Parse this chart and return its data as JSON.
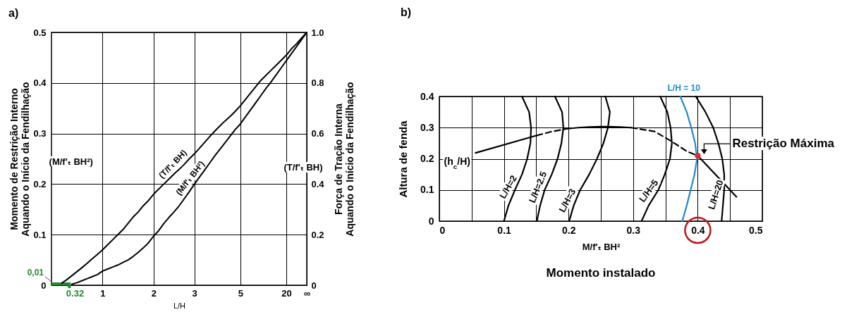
{
  "chart_data": [
    {
      "type": "line",
      "title": "a)",
      "xlabel": "L/H",
      "ylabel": "Momento de Restrição Interno\nAquando o Início da Fendilhação",
      "y2label": "Força de Tração Interna\nAquando o Início da Fendilhação",
      "categories": [
        null,
        null,
        null,
        null,
        null,
        null,
        null,
        null,
        null,
        null,
        "1",
        null,
        null,
        null,
        null,
        null,
        null,
        null,
        null,
        null,
        "2",
        null,
        null,
        null,
        null,
        null,
        null,
        null,
        "3",
        null,
        null,
        null,
        null,
        null,
        null,
        null,
        null,
        "5",
        null,
        null,
        null,
        null,
        null,
        null,
        null,
        null,
        "20",
        null,
        null,
        null,
        "∞"
      ],
      "ylim": [
        0,
        0.5
      ],
      "yticks": [
        0,
        0.1,
        0.2,
        0.3,
        0.4,
        0.5
      ],
      "y2lim": [
        0,
        1
      ],
      "y2ticks": [
        0,
        0.2,
        0.4,
        0.6,
        0.8,
        {
          "value": 1,
          "label": "1.0"
        }
      ],
      "grid": true,
      "series": [
        {
          "name": "(T/f'ₜ BH)",
          "color": "#000000",
          "axis": "y2",
          "values": [
            null,
            null,
            0.008,
            0.022,
            0.038,
            0.054,
            0.07,
            0.087,
            0.105,
            0.122,
            0.14,
            0.16,
            0.18,
            0.2,
            0.22,
            0.245,
            0.27,
            0.29,
            0.315,
            0.335,
            0.36,
            0.38,
            0.4,
            0.42,
            0.44,
            0.458,
            0.478,
            0.5,
            0.52,
            0.542,
            0.565,
            0.588,
            0.61,
            0.63,
            0.65,
            0.668,
            0.688,
            0.71,
            0.735,
            0.76,
            0.785,
            0.81,
            0.83,
            0.85,
            0.87,
            0.89,
            0.91,
            0.935,
            0.955,
            0.978,
            1
          ]
        },
        {
          "name": "(M/f'ₜ BH²)",
          "color": "#000000",
          "values": [
            null,
            null,
            null,
            null,
            0.002,
            0.005,
            0.009,
            0.013,
            0.017,
            0.021,
            0.028,
            0.032,
            0.036,
            0.04,
            0.045,
            0.05,
            0.057,
            0.065,
            0.074,
            0.084,
            0.097,
            0.108,
            0.122,
            0.134,
            0.145,
            0.157,
            0.171,
            0.185,
            0.2,
            0.214,
            0.228,
            0.242,
            0.256,
            0.269,
            0.282,
            0.295,
            0.308,
            0.319,
            0.333,
            0.347,
            0.361,
            0.375,
            0.389,
            0.402,
            0.416,
            0.43,
            0.444,
            0.458,
            0.472,
            0.486,
            0.5
          ]
        }
      ],
      "annotations": [
        "(M/f'ₜ BH²)",
        "(T/f'ₜ BH)",
        "0,01",
        "0.32"
      ]
    },
    {
      "type": "line",
      "title": "b)",
      "xlabel": "M/f'ₜ BH²",
      "ylabel": "Altura de fenda",
      "xlim": [
        0,
        0.5
      ],
      "xticks": [
        0,
        {
          "value": 0.05,
          "label": null
        },
        0.1,
        {
          "value": 0.15,
          "label": null
        },
        0.2,
        {
          "value": 0.25,
          "label": null
        },
        0.3,
        {
          "value": 0.35,
          "label": null
        },
        0.4,
        {
          "value": 0.45,
          "label": null
        },
        0.5
      ],
      "ylim": [
        0,
        0.4
      ],
      "yticks": [
        0,
        0.1,
        0.2,
        0.3,
        0.4
      ],
      "grid": true,
      "series": [
        {
          "name": "L/H=2",
          "color": "#000000",
          "x": [
            0.1,
            0.107,
            0.117,
            0.128,
            0.136,
            0.141,
            0.142,
            0.139,
            0.128
          ],
          "values": [
            0,
            0.05,
            0.1,
            0.15,
            0.2,
            0.25,
            0.3,
            0.35,
            0.4
          ]
        },
        {
          "name": "L/H=2.5",
          "color": "#000000",
          "x": [
            0.151,
            0.156,
            0.163,
            0.174,
            0.183,
            0.189,
            0.192,
            0.19,
            0.179
          ],
          "values": [
            0,
            0.05,
            0.1,
            0.15,
            0.2,
            0.25,
            0.3,
            0.35,
            0.4
          ]
        },
        {
          "name": "L/H=3",
          "color": "#000000",
          "x": [
            0.201,
            0.208,
            0.218,
            0.232,
            0.244,
            0.254,
            0.261,
            0.264,
            0.257
          ],
          "values": [
            0,
            0.05,
            0.1,
            0.15,
            0.2,
            0.25,
            0.3,
            0.35,
            0.4
          ]
        },
        {
          "name": "L/H=5",
          "color": "#000000",
          "x": [
            0.313,
            0.324,
            0.339,
            0.349,
            0.357,
            0.36,
            0.358,
            0.353,
            0.342
          ],
          "values": [
            0,
            0.05,
            0.1,
            0.15,
            0.2,
            0.25,
            0.3,
            0.35,
            0.4
          ]
        },
        {
          "name": "L/H = 10",
          "color": "#1f8ad0",
          "x": [
            0.376,
            0.383,
            0.389,
            0.395,
            0.399,
            0.396,
            0.39,
            0.383,
            0.373
          ],
          "values": [
            0,
            0.05,
            0.1,
            0.15,
            0.2,
            0.25,
            0.3,
            0.35,
            0.4
          ]
        },
        {
          "name": "L/H=20",
          "color": "#000000",
          "x": [
            0.437,
            0.439,
            0.441,
            0.441,
            0.438,
            0.432,
            0.424,
            0.412,
            0.397
          ],
          "values": [
            0,
            0.05,
            0.1,
            0.15,
            0.2,
            0.25,
            0.3,
            0.35,
            0.4
          ]
        },
        {
          "name": "(h$_{c}$/H)",
          "color": "#000000",
          "x": [
            0.056,
            0.151
          ],
          "values": [
            0.219,
            0.275
          ]
        },
        {
          "color": "#000000",
          "line_style": "dashed",
          "x": [
            0.151,
            0.173,
            0.196
          ],
          "values": [
            0.275,
            0.287,
            0.296
          ]
        },
        {
          "color": "#000000",
          "x": [
            0.196,
            0.215,
            0.232,
            0.25,
            0.262,
            0.28,
            0.297
          ],
          "values": [
            0.296,
            0.3,
            0.302,
            0.303,
            0.303,
            0.302,
            0.3
          ]
        },
        {
          "color": "#000000",
          "line_style": "dashed",
          "x": [
            0.297,
            0.333,
            0.358,
            0.384,
            0.4
          ],
          "values": [
            0.3,
            0.288,
            0.258,
            0.223,
            0.21
          ]
        },
        {
          "color": "#000000",
          "x": [
            0.4,
            0.43,
            0.46
          ],
          "values": [
            0.21,
            0.144,
            0.078
          ]
        },
        {
          "type": "scatter",
          "color": "#e8262b",
          "marker": "circle",
          "x": [
            0.4
          ],
          "values": [
            0.21
          ]
        }
      ],
      "annotations": [
        {
          "text": "Restrição Máxima",
          "x": 0.4,
          "y": 0.21
        },
        "Momento instalado"
      ]
    }
  ]
}
